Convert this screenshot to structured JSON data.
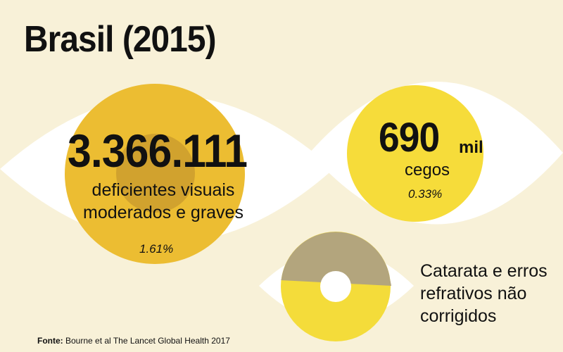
{
  "title": "Brasil (2015)",
  "visually_impaired": {
    "number": "3.366.111",
    "label_line1": "deficientes visuais",
    "label_line2": "moderados e graves",
    "percent": "1.61%"
  },
  "blind": {
    "number": "690",
    "unit": "mil",
    "label": "cegos",
    "percent": "0.33%"
  },
  "causes": {
    "line1": "Catarata e erros",
    "line2": "refrativos não",
    "line3": "corrigidos"
  },
  "source": {
    "label": "Fonte:",
    "text": " Bourne et al The Lancet Global Health 2017"
  },
  "colors": {
    "background": "#f8f1d8",
    "eye_white": "#ffffff",
    "large_iris": "#ecbd32",
    "large_pupil": "#d1a22e",
    "blind_iris": "#f6dc3a",
    "causes_upper": "#b3a57d",
    "causes_lower": "#f4dc3a"
  }
}
